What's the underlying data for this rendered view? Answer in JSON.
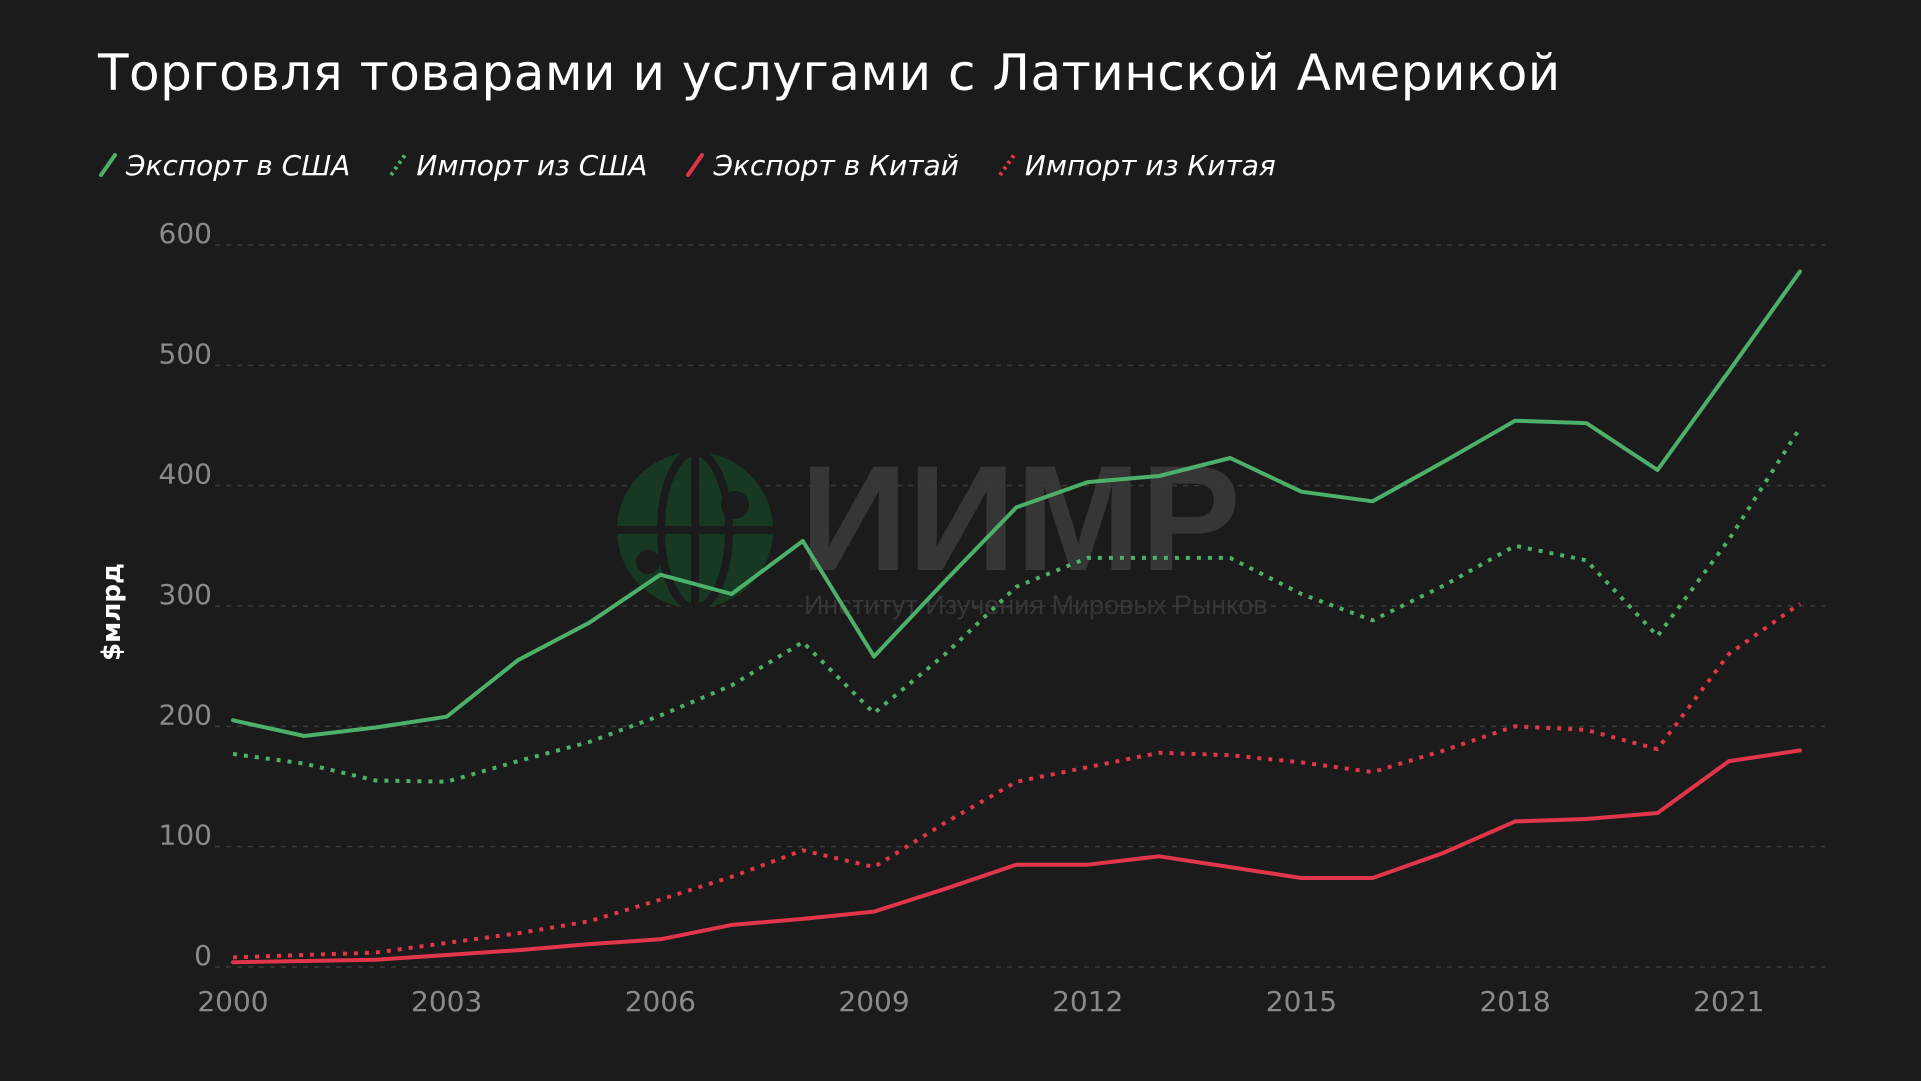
{
  "colors": {
    "background": "#1b1b1b",
    "green": "#4caf6a",
    "red": "#e0354a",
    "grid": "#3a3a3a",
    "tick": "#8a8a8a",
    "watermark": "#3a3a3a"
  },
  "watermark": {
    "logo": "ИИМР",
    "tagline": "Институт Изучения Мировых Рынков",
    "icon": "globe-icon"
  },
  "chart_data": {
    "type": "line",
    "title": "Торговля товарами и услугами с Латинской Америкой",
    "ylabel": "$млрд",
    "xlabel": "",
    "ylim": [
      0,
      600
    ],
    "xlim": [
      2000,
      2022
    ],
    "yticks": [
      "0",
      "100",
      "200",
      "300",
      "400",
      "500",
      "600"
    ],
    "xticks": [
      "2000",
      "2003",
      "2006",
      "2009",
      "2012",
      "2015",
      "2018",
      "2021"
    ],
    "grid": true,
    "legend_position": "top-left",
    "x": [
      2000,
      2001,
      2002,
      2003,
      2004,
      2005,
      2006,
      2007,
      2008,
      2009,
      2010,
      2011,
      2012,
      2013,
      2014,
      2015,
      2016,
      2017,
      2018,
      2019,
      2020,
      2021,
      2022
    ],
    "series": [
      {
        "name": "Экспорт в США",
        "color": "#4caf6a",
        "style": "solid",
        "values": [
          205,
          192,
          199,
          208,
          255,
          286,
          326,
          310,
          354,
          258,
          321,
          382,
          403,
          408,
          423,
          395,
          387,
          420,
          454,
          452,
          413,
          495,
          578
        ]
      },
      {
        "name": "Импорт из США",
        "color": "#4caf6a",
        "style": "dotted",
        "values": [
          177,
          169,
          155,
          154,
          171,
          187,
          209,
          234,
          270,
          211,
          260,
          316,
          340,
          340,
          340,
          310,
          288,
          317,
          350,
          338,
          275,
          355,
          448
        ]
      },
      {
        "name": "Экспорт в Китай",
        "color": "#e0354a",
        "style": "solid",
        "values": [
          4,
          5,
          6,
          10,
          14,
          19,
          23,
          35,
          40,
          46,
          65,
          85,
          85,
          92,
          83,
          74,
          74,
          95,
          121,
          123,
          128,
          171,
          180
        ]
      },
      {
        "name": "Импорт из Китая",
        "color": "#e0354a",
        "style": "dotted",
        "values": [
          8,
          10,
          12,
          20,
          28,
          38,
          56,
          75,
          97,
          83,
          120,
          154,
          166,
          178,
          176,
          170,
          162,
          180,
          200,
          197,
          181,
          260,
          302
        ]
      }
    ]
  }
}
